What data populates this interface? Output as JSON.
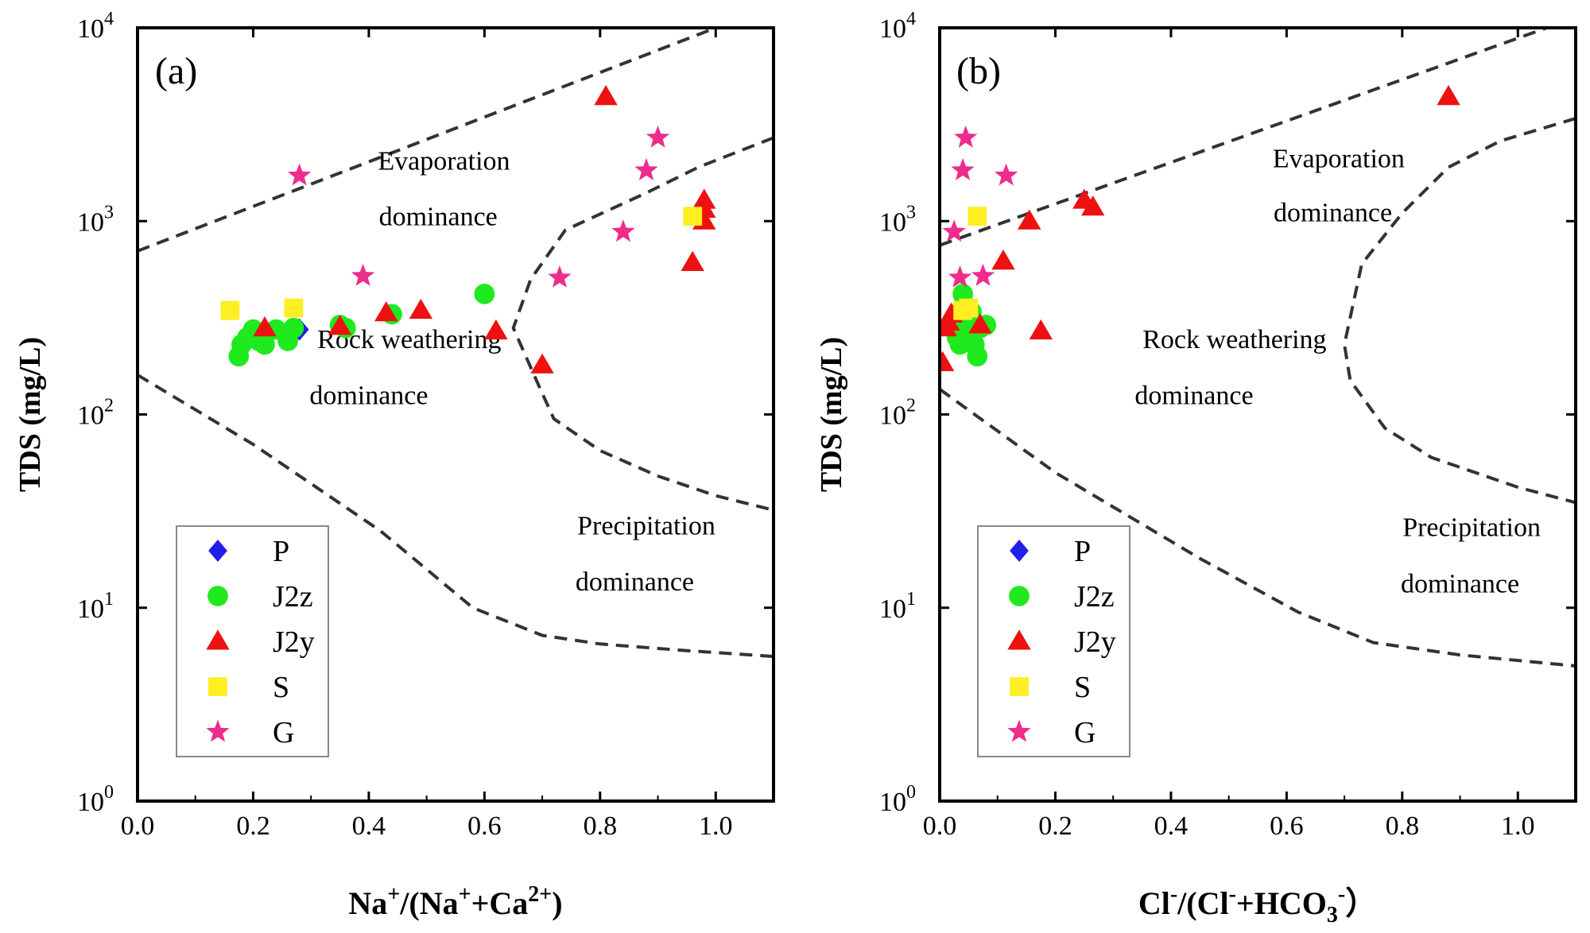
{
  "colors": {
    "P": "#1f1fe6",
    "J2z": "#1eea1e",
    "J2y": "#ee1111",
    "S": "#ffee22",
    "G": "#ee2c8c",
    "boundary": "#333333",
    "frame": "#000000"
  },
  "legend": [
    {
      "key": "P",
      "label": "P",
      "marker": "diamond"
    },
    {
      "key": "J2z",
      "label": "J2z",
      "marker": "circle"
    },
    {
      "key": "J2y",
      "label": "J2y",
      "marker": "triangle"
    },
    {
      "key": "S",
      "label": "S",
      "marker": "square"
    },
    {
      "key": "G",
      "label": "G",
      "marker": "star"
    }
  ],
  "chart_data": [
    {
      "type": "scatter",
      "panel_label": "(a)",
      "xlabel": {
        "base1": "Na",
        "sup1": "+",
        "mid": "/(Na",
        "sup2": "+",
        "plus": "+Ca",
        "sup3": "2+",
        "end": ")"
      },
      "ylabel": "TDS (mg/L)",
      "xlim": [
        0,
        1.1
      ],
      "ylim": [
        1,
        10000
      ],
      "yscale": "log",
      "xticks": [
        "0.0",
        "0.2",
        "0.4",
        "0.6",
        "0.8",
        "1.0"
      ],
      "xtick_values": [
        0,
        0.2,
        0.4,
        0.6,
        0.8,
        1.0
      ],
      "yticks": [
        {
          "value": 1,
          "base": "10",
          "exp": "0"
        },
        {
          "value": 10,
          "base": "10",
          "exp": "1"
        },
        {
          "value": 100,
          "base": "10",
          "exp": "2"
        },
        {
          "value": 1000,
          "base": "10",
          "exp": "3"
        },
        {
          "value": 10000,
          "base": "10",
          "exp": "4"
        }
      ],
      "annotations": [
        {
          "text": "Evaporation",
          "x": 0.53,
          "y": 1850
        },
        {
          "text": "dominance",
          "x": 0.52,
          "y": 950
        },
        {
          "text": "Rock weathering",
          "x": 0.47,
          "y": 220
        },
        {
          "text": "dominance",
          "x": 0.4,
          "y": 113
        },
        {
          "text": "Precipitation",
          "x": 0.88,
          "y": 24
        },
        {
          "text": "dominance",
          "x": 0.86,
          "y": 12.3
        }
      ],
      "boundaries": [
        [
          [
            0,
            700
          ],
          [
            1.0,
            10000
          ]
        ],
        [
          [
            1.1,
            2700
          ],
          [
            0.97,
            1900
          ],
          [
            0.88,
            1400
          ],
          [
            0.74,
            900
          ],
          [
            0.68,
            500
          ],
          [
            0.65,
            280
          ],
          [
            0.69,
            150
          ],
          [
            0.72,
            95
          ],
          [
            0.8,
            65
          ],
          [
            0.9,
            48
          ],
          [
            1.0,
            38
          ],
          [
            1.1,
            32
          ]
        ],
        [
          [
            0,
            160
          ],
          [
            0.2,
            70
          ],
          [
            0.42,
            25
          ],
          [
            0.58,
            10
          ],
          [
            0.7,
            7.2
          ],
          [
            0.8,
            6.5
          ],
          [
            0.95,
            6
          ],
          [
            1.1,
            5.6
          ]
        ]
      ],
      "series": [
        {
          "name": "P",
          "points": [
            [
              0.28,
              275
            ]
          ]
        },
        {
          "name": "J2z",
          "points": [
            [
              0.175,
              200
            ],
            [
              0.18,
              230
            ],
            [
              0.19,
              250
            ],
            [
              0.2,
              275
            ],
            [
              0.21,
              240
            ],
            [
              0.22,
              230
            ],
            [
              0.24,
              275
            ],
            [
              0.26,
              240
            ],
            [
              0.27,
              280
            ],
            [
              0.35,
              290
            ],
            [
              0.36,
              280
            ],
            [
              0.44,
              330
            ],
            [
              0.6,
              420
            ]
          ]
        },
        {
          "name": "J2y",
          "points": [
            [
              0.22,
              280
            ],
            [
              0.35,
              285
            ],
            [
              0.43,
              335
            ],
            [
              0.49,
              345
            ],
            [
              0.62,
              270
            ],
            [
              0.7,
              180
            ],
            [
              0.81,
              4400
            ],
            [
              0.96,
              610
            ],
            [
              0.98,
              1000
            ],
            [
              0.98,
              1150
            ],
            [
              0.98,
              1280
            ]
          ]
        },
        {
          "name": "S",
          "points": [
            [
              0.16,
              345
            ],
            [
              0.27,
              355
            ],
            [
              0.96,
              1060
            ]
          ]
        },
        {
          "name": "G",
          "points": [
            [
              0.28,
              1720
            ],
            [
              0.39,
              520
            ],
            [
              0.73,
              510
            ],
            [
              0.84,
              880
            ],
            [
              0.88,
              1830
            ],
            [
              0.9,
              2700
            ]
          ]
        }
      ]
    },
    {
      "type": "scatter",
      "panel_label": "(b)",
      "xlabel": {
        "base1": "Cl",
        "sup1": "-",
        "mid": "/(Cl",
        "sup2": "-",
        "plus": "+HCO",
        "sub": "3",
        "sup3": "-",
        "end": "）"
      },
      "ylabel": "TDS (mg/L)",
      "xlim": [
        0,
        1.1
      ],
      "ylim": [
        1,
        10000
      ],
      "yscale": "log",
      "xticks": [
        "0.0",
        "0.2",
        "0.4",
        "0.6",
        "0.8",
        "1.0"
      ],
      "xtick_values": [
        0,
        0.2,
        0.4,
        0.6,
        0.8,
        1.0
      ],
      "yticks": [
        {
          "value": 1,
          "base": "10",
          "exp": "0"
        },
        {
          "value": 10,
          "base": "10",
          "exp": "1"
        },
        {
          "value": 100,
          "base": "10",
          "exp": "2"
        },
        {
          "value": 1000,
          "base": "10",
          "exp": "3"
        },
        {
          "value": 10000,
          "base": "10",
          "exp": "4"
        }
      ],
      "annotations": [
        {
          "text": "Evaporation",
          "x": 0.69,
          "y": 1900
        },
        {
          "text": "dominance",
          "x": 0.68,
          "y": 1000
        },
        {
          "text": "Rock weathering",
          "x": 0.51,
          "y": 220
        },
        {
          "text": "dominance",
          "x": 0.44,
          "y": 113
        },
        {
          "text": "Precipitation",
          "x": 0.92,
          "y": 23.5
        },
        {
          "text": "dominance",
          "x": 0.9,
          "y": 12
        },
        {
          "text": "",
          "x": 0,
          "y": 1
        }
      ],
      "boundaries": [
        [
          [
            0,
            750
          ],
          [
            1.05,
            10000
          ]
        ],
        [
          [
            1.1,
            3400
          ],
          [
            0.97,
            2600
          ],
          [
            0.88,
            1900
          ],
          [
            0.8,
            1100
          ],
          [
            0.73,
            600
          ],
          [
            0.7,
            230
          ],
          [
            0.71,
            150
          ],
          [
            0.77,
            85
          ],
          [
            0.85,
            60
          ],
          [
            1.0,
            42
          ],
          [
            1.1,
            35
          ]
        ],
        [
          [
            0,
            135
          ],
          [
            0.2,
            50
          ],
          [
            0.45,
            18
          ],
          [
            0.62,
            9.5
          ],
          [
            0.75,
            6.6
          ],
          [
            0.9,
            5.7
          ],
          [
            1.1,
            5
          ]
        ]
      ],
      "series": [
        {
          "name": "P",
          "points": [
            [
              0.04,
              290
            ]
          ]
        },
        {
          "name": "J2z",
          "points": [
            [
              0.03,
              250
            ],
            [
              0.035,
              230
            ],
            [
              0.04,
              360
            ],
            [
              0.04,
              420
            ],
            [
              0.045,
              300
            ],
            [
              0.05,
              260
            ],
            [
              0.055,
              340
            ],
            [
              0.06,
              230
            ],
            [
              0.065,
              200
            ],
            [
              0.07,
              280
            ],
            [
              0.08,
              290
            ],
            [
              0.025,
              300
            ]
          ]
        },
        {
          "name": "J2y",
          "points": [
            [
              0.005,
              185
            ],
            [
              0.01,
              280
            ],
            [
              0.015,
              300
            ],
            [
              0.02,
              330
            ],
            [
              0.07,
              290
            ],
            [
              0.11,
              620
            ],
            [
              0.155,
              1000
            ],
            [
              0.175,
              270
            ],
            [
              0.25,
              1280
            ],
            [
              0.265,
              1180
            ],
            [
              0.88,
              4400
            ]
          ]
        },
        {
          "name": "S",
          "points": [
            [
              0.04,
              345
            ],
            [
              0.05,
              355
            ],
            [
              0.065,
              1060
            ]
          ]
        },
        {
          "name": "G",
          "points": [
            [
              0.025,
              880
            ],
            [
              0.035,
              510
            ],
            [
              0.04,
              1830
            ],
            [
              0.045,
              2700
            ],
            [
              0.075,
              520
            ],
            [
              0.115,
              1720
            ]
          ]
        }
      ]
    }
  ]
}
